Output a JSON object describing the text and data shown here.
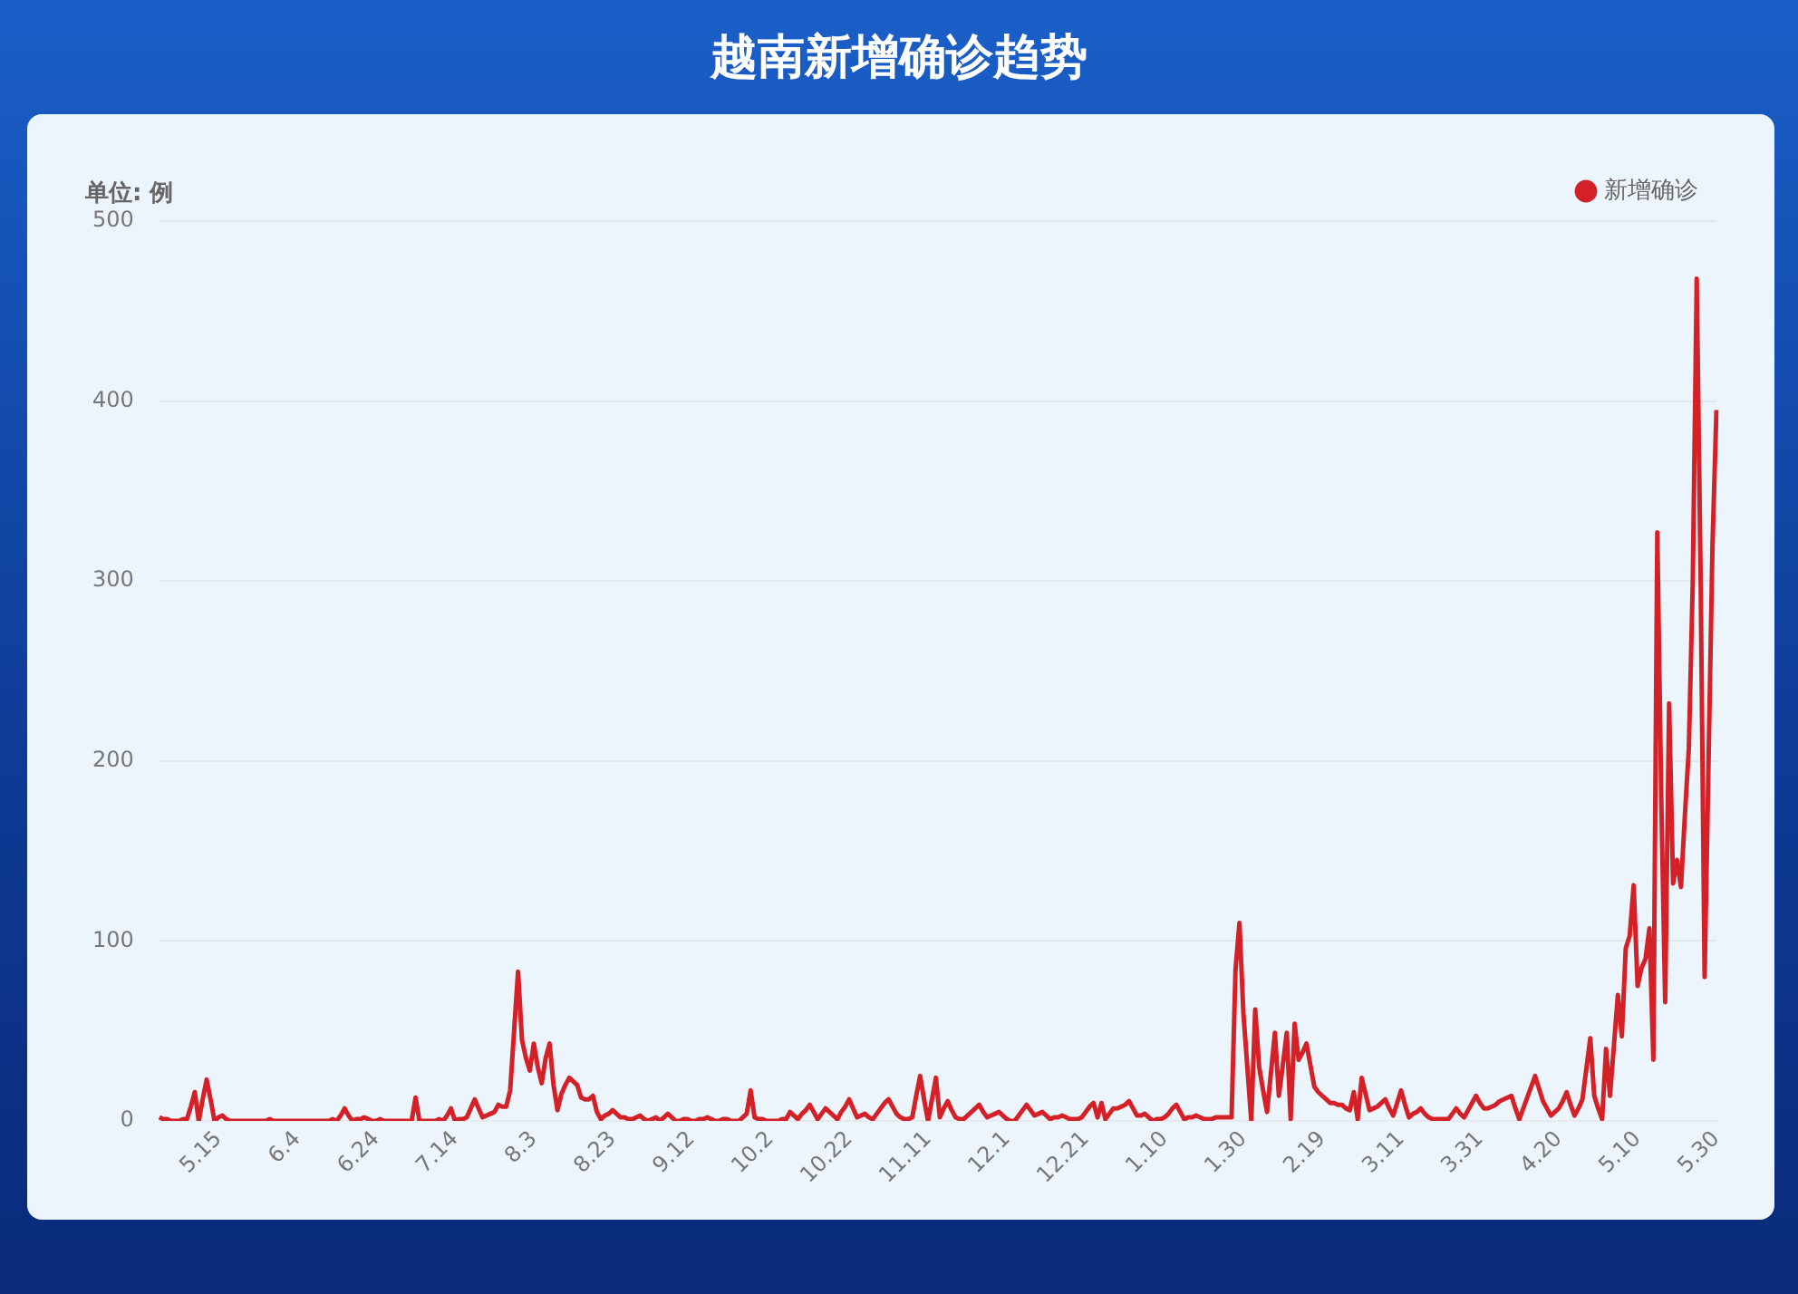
{
  "chart_data": {
    "type": "line",
    "title": "越南新增确诊趋势",
    "ylabel": "单位: 例",
    "ylim": [
      0,
      500
    ],
    "yticks": [
      0,
      100,
      200,
      300,
      400,
      500
    ],
    "categories": [
      null,
      null,
      null,
      null,
      null,
      null,
      null,
      null,
      null,
      null,
      null,
      null,
      null,
      null,
      null,
      "5.15",
      null,
      null,
      null,
      null,
      null,
      null,
      null,
      null,
      null,
      null,
      null,
      null,
      null,
      null,
      null,
      null,
      null,
      null,
      null,
      "6.4",
      null,
      null,
      null,
      null,
      null,
      null,
      null,
      null,
      null,
      null,
      null,
      null,
      null,
      null,
      null,
      null,
      null,
      null,
      null,
      "6.24",
      null,
      null,
      null,
      null,
      null,
      null,
      null,
      null,
      null,
      null,
      null,
      null,
      null,
      null,
      null,
      null,
      null,
      null,
      null,
      "7.14",
      null,
      null,
      null,
      null,
      null,
      null,
      null,
      null,
      null,
      null,
      null,
      null,
      null,
      null,
      null,
      null,
      null,
      null,
      null,
      "8.3",
      null,
      null,
      null,
      null,
      null,
      null,
      null,
      null,
      null,
      null,
      null,
      null,
      null,
      null,
      null,
      null,
      null,
      null,
      null,
      "8.23",
      null,
      null,
      null,
      null,
      null,
      null,
      null,
      null,
      null,
      null,
      null,
      null,
      null,
      null,
      null,
      null,
      null,
      null,
      null,
      "9.12",
      null,
      null,
      null,
      null,
      null,
      null,
      null,
      null,
      null,
      null,
      null,
      null,
      null,
      null,
      null,
      null,
      null,
      null,
      null,
      "10.2",
      null,
      null,
      null,
      null,
      null,
      null,
      null,
      null,
      null,
      null,
      null,
      null,
      null,
      null,
      null,
      null,
      null,
      null,
      null,
      "10.22",
      null,
      null,
      null,
      null,
      null,
      null,
      null,
      null,
      null,
      null,
      null,
      null,
      null,
      null,
      null,
      null,
      null,
      null,
      null,
      "11.11",
      null,
      null,
      null,
      null,
      null,
      null,
      null,
      null,
      null,
      null,
      null,
      null,
      null,
      null,
      null,
      null,
      null,
      null,
      null,
      "12.1",
      null,
      null,
      null,
      null,
      null,
      null,
      null,
      null,
      null,
      null,
      null,
      null,
      null,
      null,
      null,
      null,
      null,
      null,
      null,
      "12.21",
      null,
      null,
      null,
      null,
      null,
      null,
      null,
      null,
      null,
      null,
      null,
      null,
      null,
      null,
      null,
      null,
      null,
      null,
      null,
      "1.10",
      null,
      null,
      null,
      null,
      null,
      null,
      null,
      null,
      null,
      null,
      null,
      null,
      null,
      null,
      null,
      null,
      null,
      null,
      null,
      "1.30",
      null,
      null,
      null,
      null,
      null,
      null,
      null,
      null,
      null,
      null,
      null,
      null,
      null,
      null,
      null,
      null,
      null,
      null,
      null,
      "2.19",
      null,
      null,
      null,
      null,
      null,
      null,
      null,
      null,
      null,
      null,
      null,
      null,
      null,
      null,
      null,
      null,
      null,
      null,
      null,
      "3.11",
      null,
      null,
      null,
      null,
      null,
      null,
      null,
      null,
      null,
      null,
      null,
      null,
      null,
      null,
      null,
      null,
      null,
      null,
      null,
      "3.31",
      null,
      null,
      null,
      null,
      null,
      null,
      null,
      null,
      null,
      null,
      null,
      null,
      null,
      null,
      null,
      null,
      null,
      null,
      null,
      "4.20",
      null,
      null,
      null,
      null,
      null,
      null,
      null,
      null,
      null,
      null,
      null,
      null,
      null,
      null,
      null,
      null,
      null,
      null,
      null,
      "5.10",
      null,
      null,
      null,
      null,
      null,
      null,
      null,
      null,
      null,
      null,
      null,
      null,
      null,
      null,
      null,
      null,
      null,
      null,
      null,
      "5.30"
    ],
    "series": [
      {
        "name": "新增确诊",
        "color": "#d42027",
        "values": [
          2,
          1,
          1,
          0,
          0,
          0,
          1,
          1,
          8,
          16,
          0,
          12,
          23,
          12,
          0,
          2,
          3,
          1,
          0,
          0,
          0,
          0,
          0,
          0,
          0,
          0,
          0,
          0,
          1,
          0,
          0,
          0,
          0,
          0,
          0,
          0,
          0,
          0,
          0,
          0,
          0,
          0,
          0,
          0,
          1,
          0,
          3,
          7,
          3,
          0,
          1,
          1,
          2,
          1,
          0,
          0,
          1,
          0,
          0,
          0,
          0,
          0,
          0,
          0,
          0,
          13,
          0,
          0,
          0,
          0,
          0,
          1,
          0,
          3,
          7,
          0,
          1,
          1,
          2,
          7,
          12,
          7,
          2,
          3,
          4,
          5,
          9,
          8,
          8,
          17,
          50,
          83,
          45,
          35,
          28,
          43,
          30,
          21,
          35,
          43,
          20,
          6,
          15,
          20,
          24,
          22,
          20,
          13,
          12,
          12,
          14,
          5,
          1,
          3,
          4,
          6,
          4,
          2,
          2,
          1,
          1,
          2,
          3,
          1,
          0,
          1,
          2,
          0,
          2,
          4,
          2,
          0,
          0,
          1,
          1,
          0,
          0,
          1,
          1,
          2,
          1,
          0,
          0,
          1,
          1,
          0,
          0,
          0,
          2,
          4,
          17,
          2,
          1,
          1,
          0,
          0,
          0,
          0,
          1,
          1,
          5,
          3,
          1,
          4,
          6,
          9,
          5,
          1,
          4,
          7,
          5,
          3,
          1,
          5,
          8,
          12,
          7,
          2,
          3,
          4,
          2,
          1,
          4,
          7,
          10,
          12,
          8,
          4,
          2,
          1,
          1,
          2,
          14,
          25,
          12,
          0,
          12,
          24,
          2,
          7,
          11,
          6,
          2,
          1,
          1,
          3,
          5,
          7,
          9,
          5,
          2,
          3,
          4,
          5,
          3,
          1,
          0,
          0,
          3,
          6,
          9,
          6,
          3,
          4,
          5,
          3,
          1,
          2,
          2,
          3,
          2,
          1,
          1,
          1,
          2,
          5,
          8,
          10,
          2,
          10,
          1,
          4,
          7,
          7,
          8,
          9,
          11,
          7,
          3,
          3,
          4,
          2,
          0,
          1,
          1,
          2,
          4,
          7,
          9,
          5,
          1,
          2,
          2,
          3,
          2,
          1,
          1,
          1,
          2,
          2,
          2,
          2,
          2,
          84,
          110,
          60,
          30,
          0,
          62,
          30,
          17,
          5,
          27,
          49,
          14,
          31,
          49,
          1,
          54,
          34,
          38,
          43,
          31,
          19,
          16,
          14,
          12,
          10,
          10,
          9,
          9,
          7,
          6,
          16,
          1,
          24,
          15,
          6,
          7,
          8,
          10,
          12,
          7,
          3,
          10,
          17,
          9,
          2,
          4,
          5,
          7,
          4,
          2,
          1,
          1,
          1,
          1,
          1,
          4,
          7,
          4,
          2,
          6,
          10,
          14,
          10,
          7,
          7,
          8,
          9,
          11,
          12,
          13,
          14,
          7,
          1,
          7,
          13,
          19,
          25,
          18,
          11,
          7,
          3,
          5,
          7,
          11,
          16,
          9,
          3,
          7,
          12,
          29,
          46,
          14,
          7,
          1,
          40,
          14,
          42,
          70,
          47,
          96,
          103,
          131,
          75,
          85,
          90,
          107,
          34,
          327,
          180,
          66,
          232,
          132,
          145,
          130,
          170,
          207,
          300,
          468,
          300,
          80,
          200,
          320,
          395
        ]
      }
    ],
    "grid": "y",
    "legend": "top right",
    "marker": "none",
    "line_style": "solid"
  }
}
